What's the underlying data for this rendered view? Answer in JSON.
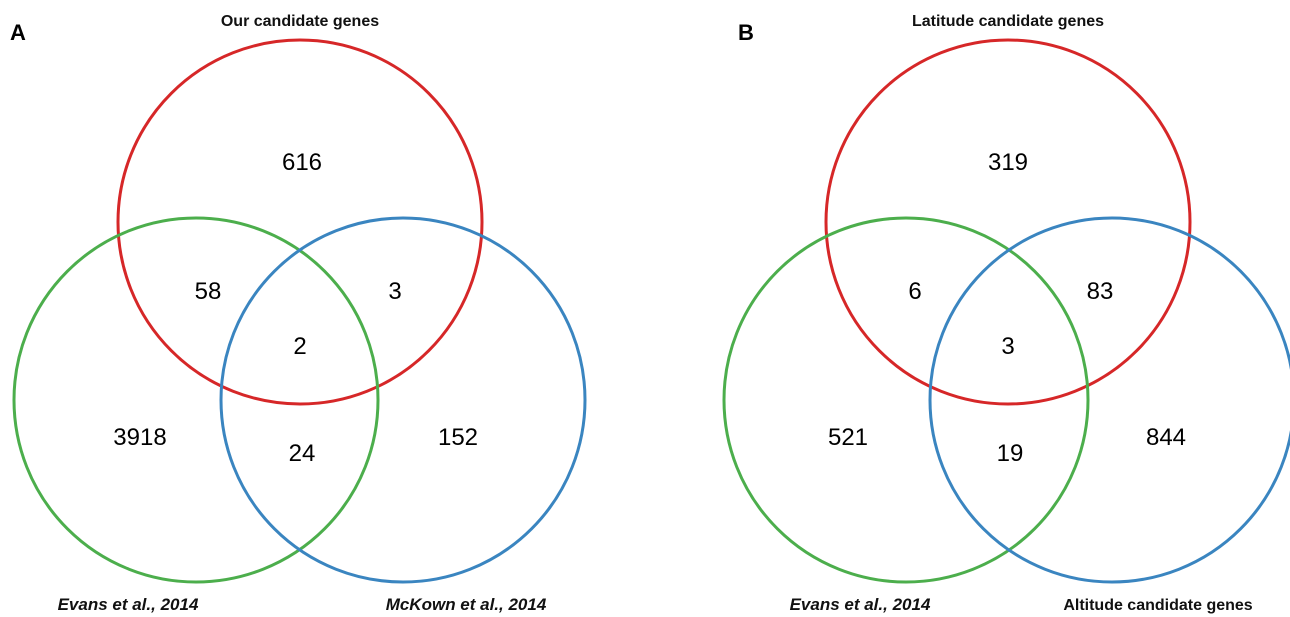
{
  "panels": [
    {
      "letter": "A",
      "sets": {
        "top": {
          "label": "Our candidate genes",
          "color": "#d62728"
        },
        "left": {
          "label": "Evans et al., 2014",
          "color": "#4cae4c"
        },
        "right": {
          "label": "McKown et al., 2014",
          "color": "#3a85c0"
        }
      },
      "regions": {
        "top_only": "616",
        "top_left": "58",
        "top_right": "3",
        "all_three": "2",
        "left_only": "3918",
        "left_right": "24",
        "right_only": "152"
      }
    },
    {
      "letter": "B",
      "sets": {
        "top": {
          "label": "Latitude candidate genes",
          "color": "#d62728"
        },
        "left": {
          "label": "Evans et al., 2014",
          "color": "#4cae4c"
        },
        "right": {
          "label": "Altitude candidate genes",
          "color": "#3a85c0"
        }
      },
      "regions": {
        "top_only": "319",
        "top_left": "6",
        "top_right": "83",
        "all_three": "3",
        "left_only": "521",
        "left_right": "19",
        "right_only": "844"
      }
    }
  ]
}
